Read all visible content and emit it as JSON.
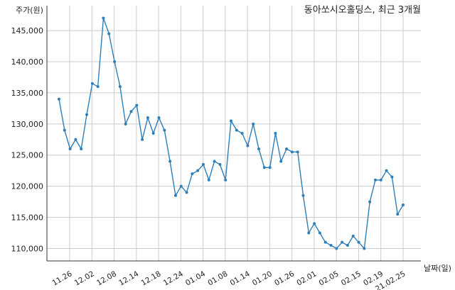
{
  "chart_data": {
    "type": "line",
    "title": "동아쏘시오홀딩스, 최근 3개월",
    "ylabel": "주가(원)",
    "xlabel": "날짜(일)",
    "ylim": [
      108000,
      149000
    ],
    "yticks": [
      110000,
      115000,
      120000,
      125000,
      130000,
      135000,
      140000,
      145000
    ],
    "ytick_labels": [
      "110,000",
      "115,000",
      "120,000",
      "125,000",
      "130,000",
      "135,000",
      "140,000",
      "145,000"
    ],
    "xtick_labels": [
      "11.26",
      "12.02",
      "12.08",
      "12.14",
      "12.18",
      "12.24",
      "01.04",
      "01.08",
      "01.14",
      "01.20",
      "01.26",
      "02.01",
      "02.05",
      "02.15",
      "02.19",
      "21.02.25"
    ],
    "grid": true,
    "color": "#2e7eb8",
    "series": [
      {
        "values": [
          134000,
          129000,
          126000,
          127500,
          126000,
          131500,
          136500,
          136000,
          147000,
          144500,
          140000,
          136000,
          130000,
          132000,
          133000,
          127500,
          131000,
          128500,
          131000,
          129000,
          124000,
          118500,
          120000,
          119000,
          122000,
          122500,
          123500,
          121000,
          124000,
          123500,
          121000,
          130500,
          129000,
          128500,
          126500,
          130000,
          126000,
          123000,
          123000,
          128500,
          124000,
          126000,
          125500,
          125500,
          118500,
          112500,
          114000,
          112500,
          111000,
          110500,
          110000,
          111000,
          110500,
          112000,
          111000,
          110000,
          117500,
          121000,
          121000,
          122500,
          121500,
          115500,
          117000
        ]
      }
    ]
  }
}
